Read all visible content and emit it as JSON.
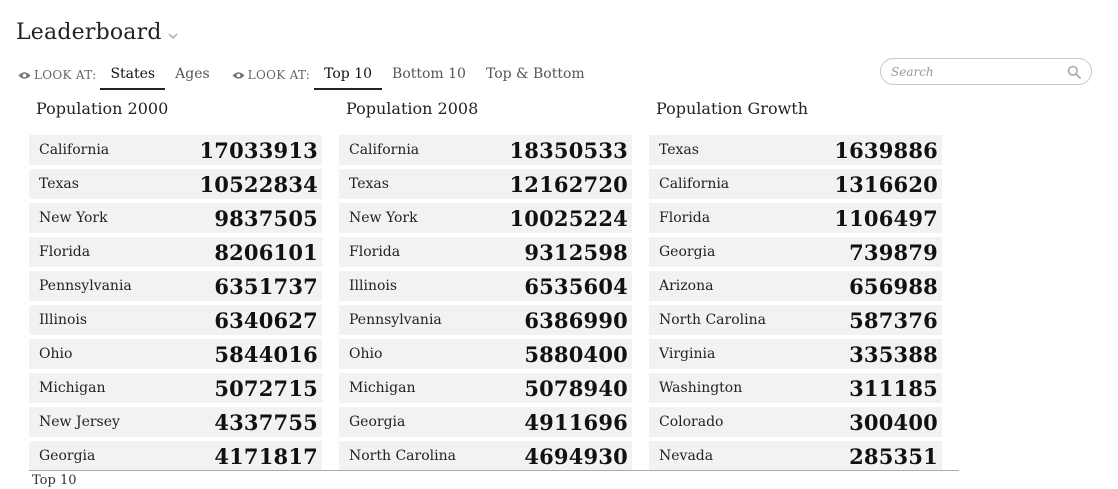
{
  "header": {
    "title": "Leaderboard"
  },
  "filters": {
    "group1": {
      "look_at": "LOOK AT:",
      "tabs": [
        "States",
        "Ages"
      ],
      "active": 0
    },
    "group2": {
      "look_at": "LOOK AT:",
      "tabs": [
        "Top 10",
        "Bottom 10",
        "Top & Bottom"
      ],
      "active": 0
    }
  },
  "search": {
    "placeholder": "Search",
    "value": ""
  },
  "columns": [
    {
      "title": "Population 2000",
      "rows": [
        {
          "name": "California",
          "value": "17033913"
        },
        {
          "name": "Texas",
          "value": "10522834"
        },
        {
          "name": "New York",
          "value": "9837505"
        },
        {
          "name": "Florida",
          "value": "8206101"
        },
        {
          "name": "Pennsylvania",
          "value": "6351737"
        },
        {
          "name": "Illinois",
          "value": "6340627"
        },
        {
          "name": "Ohio",
          "value": "5844016"
        },
        {
          "name": "Michigan",
          "value": "5072715"
        },
        {
          "name": "New Jersey",
          "value": "4337755"
        },
        {
          "name": "Georgia",
          "value": "4171817"
        }
      ]
    },
    {
      "title": "Population 2008",
      "rows": [
        {
          "name": "California",
          "value": "18350533"
        },
        {
          "name": "Texas",
          "value": "12162720"
        },
        {
          "name": "New York",
          "value": "10025224"
        },
        {
          "name": "Florida",
          "value": "9312598"
        },
        {
          "name": "Illinois",
          "value": "6535604"
        },
        {
          "name": "Pennsylvania",
          "value": "6386990"
        },
        {
          "name": "Ohio",
          "value": "5880400"
        },
        {
          "name": "Michigan",
          "value": "5078940"
        },
        {
          "name": "Georgia",
          "value": "4911696"
        },
        {
          "name": "North Carolina",
          "value": "4694930"
        }
      ]
    },
    {
      "title": "Population Growth",
      "rows": [
        {
          "name": "Texas",
          "value": "1639886"
        },
        {
          "name": "California",
          "value": "1316620"
        },
        {
          "name": "Florida",
          "value": "1106497"
        },
        {
          "name": "Georgia",
          "value": "739879"
        },
        {
          "name": "Arizona",
          "value": "656988"
        },
        {
          "name": "North Carolina",
          "value": "587376"
        },
        {
          "name": "Virginia",
          "value": "335388"
        },
        {
          "name": "Washington",
          "value": "311185"
        },
        {
          "name": "Colorado",
          "value": "300400"
        },
        {
          "name": "Nevada",
          "value": "285351"
        }
      ]
    }
  ],
  "footer": {
    "label": "Top 10"
  }
}
